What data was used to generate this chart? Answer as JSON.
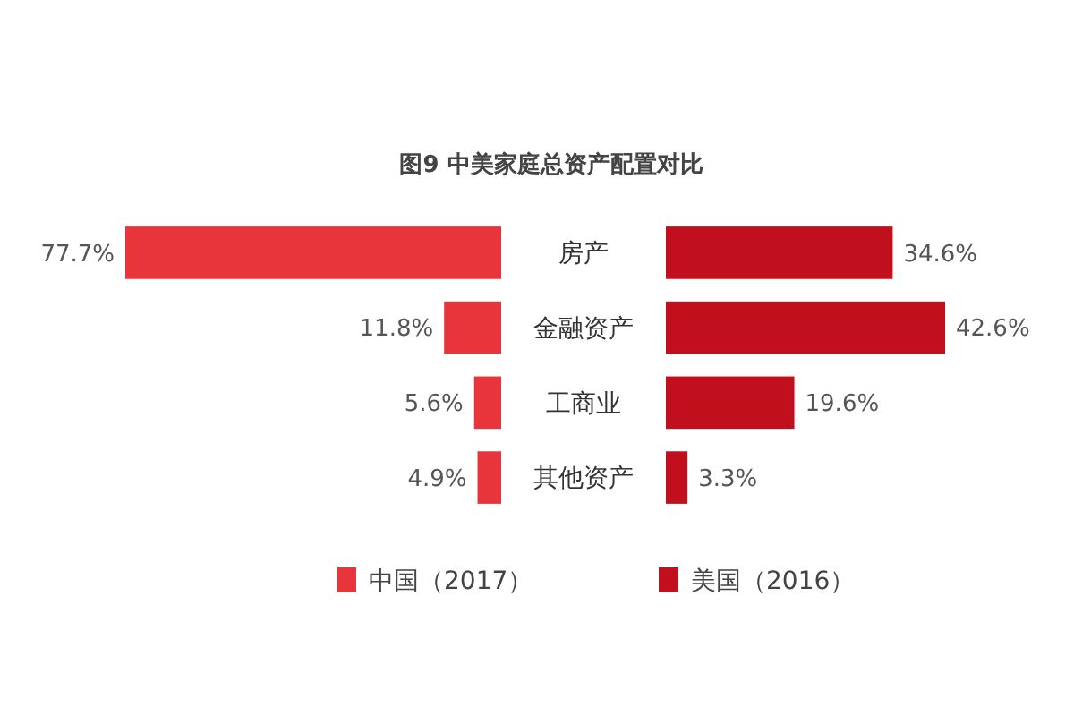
{
  "chart_data": [
    {
      "type": "bar",
      "orientation": "horizontal",
      "title": "图9 中美家庭总资产配置对比",
      "categories": [
        "房产",
        "金融资产",
        "工商业",
        "其他资产"
      ],
      "series": [
        {
          "name": "中国（2017）",
          "color": "#e8353c",
          "values": [
            77.7,
            11.8,
            5.6,
            4.9
          ],
          "value_labels": [
            "77.7%",
            "11.8%",
            "5.6%",
            "4.9%"
          ]
        }
      ],
      "legend": "bottom"
    },
    {
      "type": "bar",
      "orientation": "horizontal",
      "categories": [
        null,
        null,
        null,
        null
      ],
      "series": [
        {
          "name": "美国（2016）",
          "color": "#c20f1e",
          "values": [
            34.6,
            42.6,
            19.6,
            3.3
          ],
          "value_labels": [
            "34.6%",
            "42.6%",
            "19.6%",
            "3.3%"
          ]
        }
      ],
      "legend": "bottom"
    }
  ]
}
